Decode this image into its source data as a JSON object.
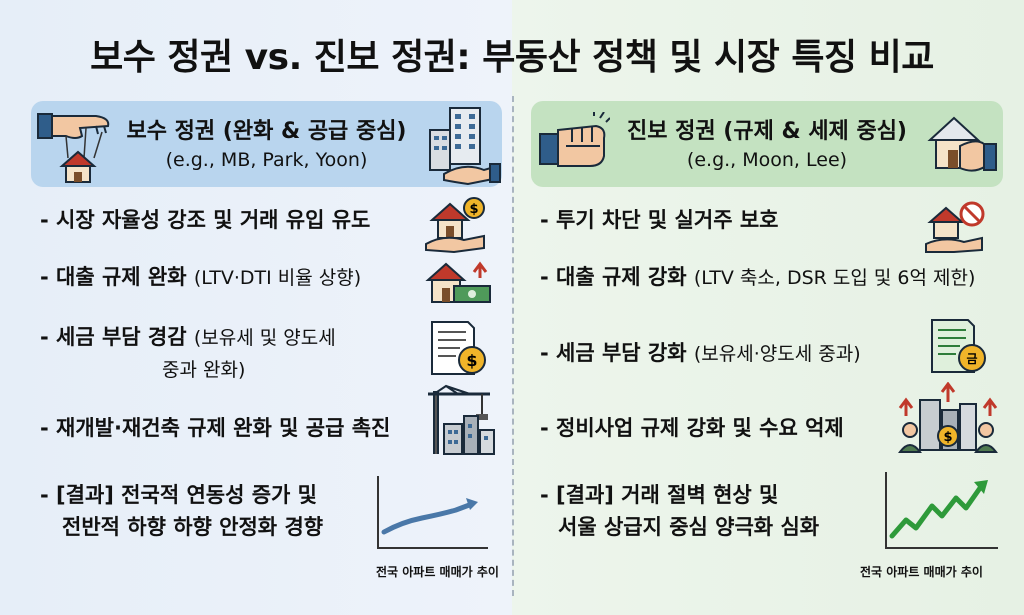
{
  "title": "보수 정권 vs. 진보 정권: 부동산 정책 및 시장 특징 비교",
  "colors": {
    "left_header_bg": "#b9d5ee",
    "right_header_bg": "#c4e2c1",
    "chart_line_blue": "#4a78a8",
    "chart_line_green": "#2e9a3a"
  },
  "conservative": {
    "header_title": "보수 정권 (완화 & 공급 중심)",
    "header_sub": "(e.g., MB, Park, Yoon)",
    "items": [
      {
        "main": "- 시장 자율성 강조 및 거래 유입 유도",
        "icon": "hand-house-coin-icon"
      },
      {
        "main": "- 대출 규제 완화 ",
        "note": "(LTV·DTI 비율 상향)",
        "icon": "house-money-up-icon"
      },
      {
        "main": "- 세금 부담 경감 ",
        "note": "(보유세 및 양도세",
        "note2": "중과 완화)",
        "icon": "tax-document-coin-icon"
      },
      {
        "main": "- 재개발·재건축 규제 완화 및 공급 촉진",
        "icon": "construction-crane-icon"
      },
      {
        "main": "- [결과] 전국적 연동성 증가 및",
        "main2": "전반적 하향 하향 안정화 경향",
        "icon": "trend-chart-icon"
      }
    ],
    "chart_caption": "전국 아파트 매매가 추이"
  },
  "progressive": {
    "header_title": "진보 정권 (규제 & 세제 중심)",
    "header_sub": "(e.g., Moon, Lee)",
    "items": [
      {
        "main": "- 투기 차단 및 실거주 보호",
        "icon": "hand-house-prohibit-icon"
      },
      {
        "main": "- 대출 규제 강화 ",
        "note": "(LTV 축소, DSR 도입 및 6억 제한)"
      },
      {
        "main": "- 세금 부담 강화 ",
        "note": "(보유세·양도세 중과)",
        "icon": "tax-document-coin-icon"
      },
      {
        "main": "- 정비사업 규제 강화 및 수요 억제",
        "icon": "buildings-people-up-icon"
      },
      {
        "main": "- [결과] 거래 절벽 현상 및",
        "main2": "서울 상급지 중심 양극화 심화",
        "icon": "trend-chart-icon"
      }
    ],
    "chart_caption": "전국 아파트 매매가 추이"
  }
}
